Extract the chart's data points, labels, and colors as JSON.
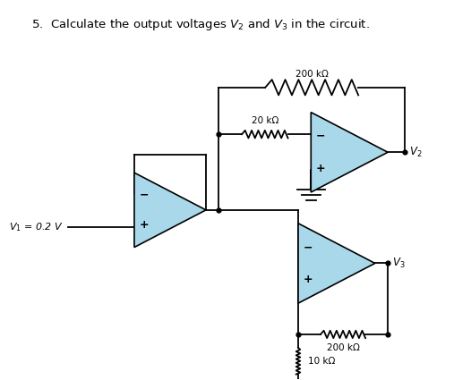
{
  "title": "5.  Calculate the output voltages $V_2$ and $V_3$ in the circuit.",
  "title_fontsize": 9.5,
  "bg_color": "#ffffff",
  "op_amp_color": "#a8d8ea",
  "line_color": "#000000",
  "node_labels": [
    "$V_1$ = 0.2 V",
    "$V_2$",
    "$V_3$"
  ],
  "res_labels": [
    "20 kΩ",
    "200 kΩ",
    "200 kΩ",
    "10 kΩ"
  ]
}
